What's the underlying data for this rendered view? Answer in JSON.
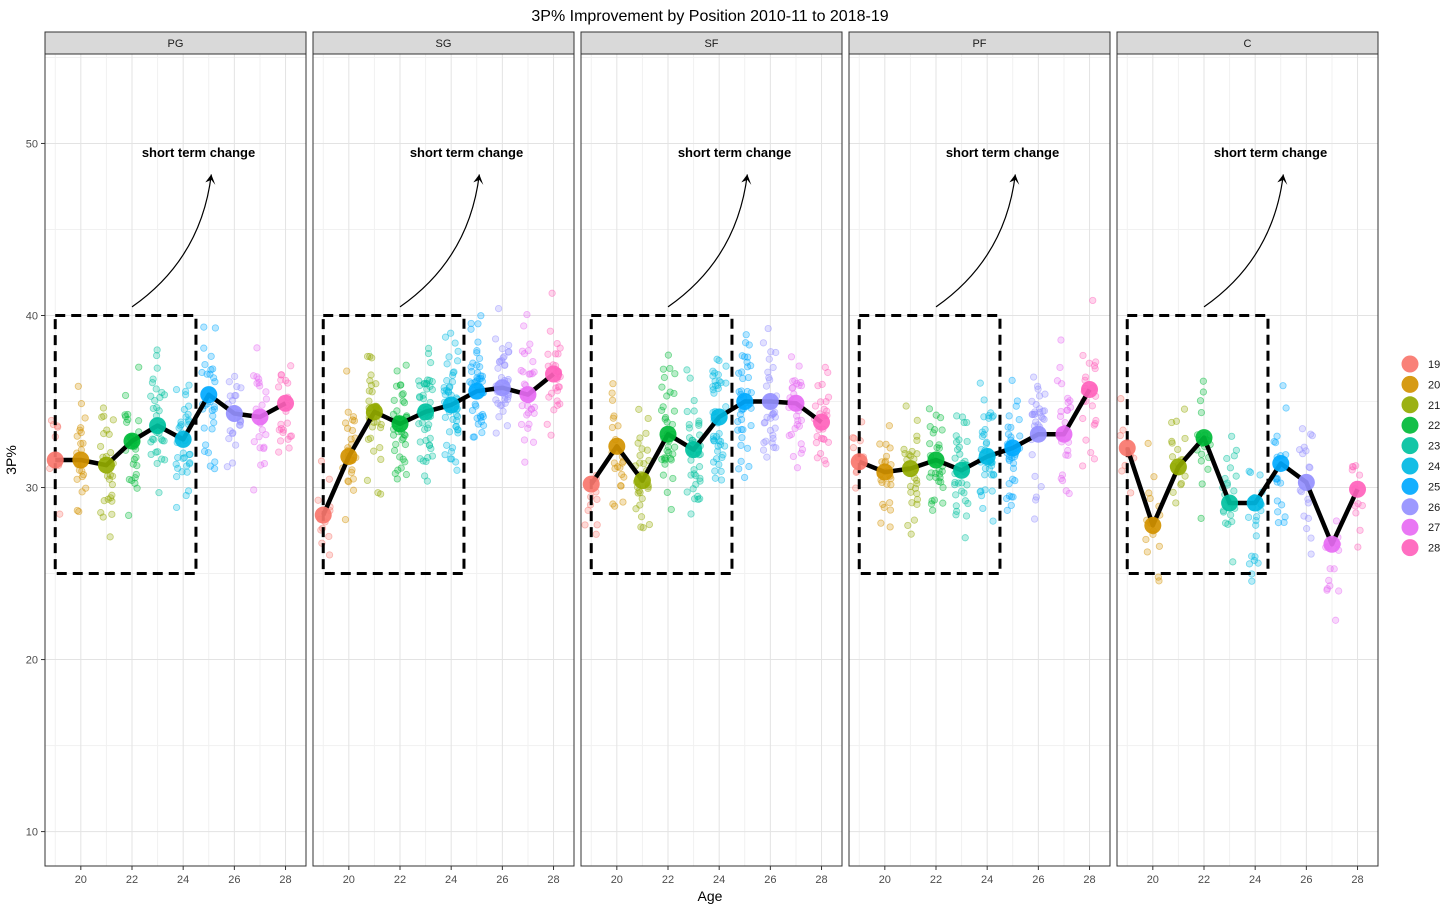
{
  "chart_data": {
    "type": "scatter",
    "title": "3P% Improvement by Position 2010-11 to 2018-19",
    "xlabel": "Age",
    "ylabel": "3P%",
    "panels": [
      "PG",
      "SG",
      "SF",
      "PF",
      "C"
    ],
    "x_ticks": [
      "20",
      "22",
      "24",
      "26",
      "28"
    ],
    "y_ticks": [
      "10",
      "20",
      "30",
      "40",
      "50"
    ],
    "xlim": [
      18.6,
      28.8
    ],
    "ylim": [
      8,
      55.2
    ],
    "grid": true,
    "legend_position": "right",
    "legend": {
      "title": "",
      "entries": [
        {
          "label": "19",
          "color": "#F8766D"
        },
        {
          "label": "20",
          "color": "#D39200"
        },
        {
          "label": "21",
          "color": "#93AA00"
        },
        {
          "label": "22",
          "color": "#00BA38"
        },
        {
          "label": "23",
          "color": "#00C19F"
        },
        {
          "label": "24",
          "color": "#00B9E3"
        },
        {
          "label": "25",
          "color": "#00A9FF"
        },
        {
          "label": "26",
          "color": "#9590FF"
        },
        {
          "label": "27",
          "color": "#E76BF3"
        },
        {
          "label": "28",
          "color": "#FF62BC"
        }
      ]
    },
    "annotation": {
      "text": "short term change",
      "box": {
        "x": [
          19,
          24.5
        ],
        "y": [
          25,
          40
        ]
      }
    },
    "series": [
      {
        "name": "PG",
        "x": [
          19,
          20,
          21,
          22,
          23,
          24,
          25,
          26,
          27,
          28
        ],
        "values": [
          31.6,
          31.6,
          31.3,
          32.7,
          33.6,
          32.8,
          35.4,
          34.3,
          34.1,
          34.9
        ]
      },
      {
        "name": "SG",
        "x": [
          19,
          20,
          21,
          22,
          23,
          24,
          25,
          26,
          27,
          28
        ],
        "values": [
          28.4,
          31.8,
          34.4,
          33.7,
          34.4,
          34.8,
          35.6,
          35.8,
          35.4,
          36.6
        ]
      },
      {
        "name": "SF",
        "x": [
          19,
          20,
          21,
          22,
          23,
          24,
          25,
          26,
          27,
          28
        ],
        "values": [
          30.2,
          32.4,
          30.4,
          33.1,
          32.2,
          34.1,
          35.0,
          35.0,
          34.9,
          33.8
        ]
      },
      {
        "name": "PF",
        "x": [
          19,
          20,
          21,
          22,
          23,
          24,
          25,
          26,
          27,
          28
        ],
        "values": [
          31.5,
          30.9,
          31.1,
          31.6,
          31.0,
          31.8,
          32.3,
          33.1,
          33.1,
          35.7
        ]
      },
      {
        "name": "C",
        "x": [
          19,
          20,
          21,
          22,
          23,
          24,
          25,
          26,
          27,
          28
        ],
        "values": [
          32.3,
          27.8,
          31.2,
          32.9,
          29.1,
          29.1,
          31.4,
          30.3,
          26.7,
          29.9
        ]
      }
    ]
  }
}
